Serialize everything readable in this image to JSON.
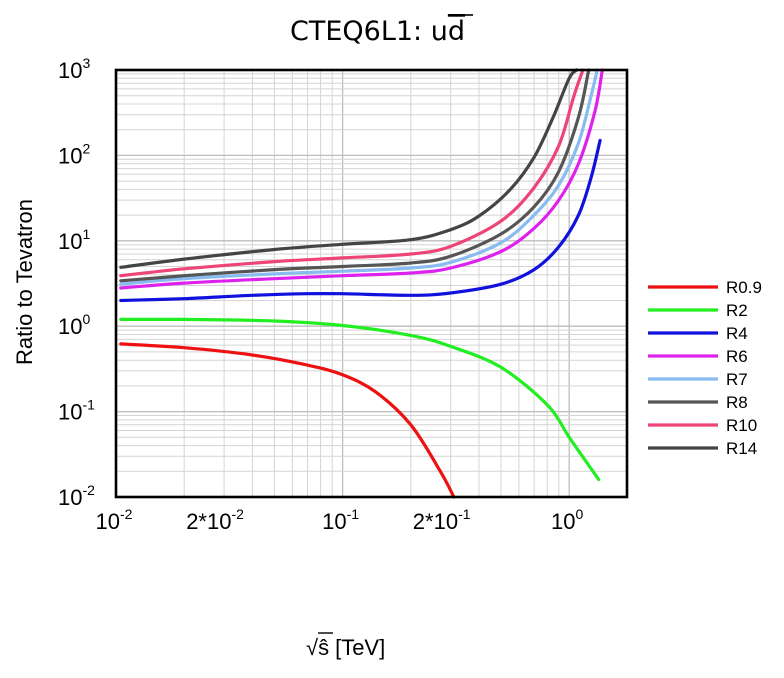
{
  "chart_data": {
    "type": "line",
    "title": "CTEQ6L1: ud̄",
    "title_main": "CTEQ6L1: u",
    "title_bar": "d",
    "xlabel": "[TeV]",
    "xlabel_root": "√",
    "xlabel_var": "ŝ",
    "ylabel": "Ratio to Tevatron",
    "xscale": "log",
    "yscale": "log",
    "xlim": [
      0.01,
      1.8
    ],
    "ylim": [
      0.01,
      1000
    ],
    "grid": true,
    "legend": "right",
    "x_ticks": [
      {
        "value": 0.01,
        "base": "10",
        "exp": "-2"
      },
      {
        "value": 0.02,
        "base": "2*10",
        "exp": "-2"
      },
      {
        "value": 0.1,
        "base": "10",
        "exp": "-1"
      },
      {
        "value": 0.2,
        "base": "2*10",
        "exp": "-1"
      },
      {
        "value": 1,
        "base": "10",
        "exp": "0"
      }
    ],
    "y_ticks": [
      {
        "value": 0.01,
        "base": "10",
        "exp": "-2"
      },
      {
        "value": 0.1,
        "base": "10",
        "exp": "-1"
      },
      {
        "value": 1,
        "base": "10",
        "exp": "0"
      },
      {
        "value": 10,
        "base": "10",
        "exp": "1"
      },
      {
        "value": 100,
        "base": "10",
        "exp": "2"
      },
      {
        "value": 1000,
        "base": "10",
        "exp": "3"
      }
    ],
    "series": [
      {
        "name": "R0.9",
        "color": "#ee1111",
        "x": [
          0.0105,
          0.02,
          0.04,
          0.07,
          0.1,
          0.14,
          0.2,
          0.27,
          0.31
        ],
        "y": [
          0.62,
          0.56,
          0.46,
          0.35,
          0.27,
          0.17,
          0.07,
          0.02,
          0.01
        ]
      },
      {
        "name": "R2",
        "color": "#22ee22",
        "x": [
          0.0105,
          0.02,
          0.05,
          0.1,
          0.2,
          0.3,
          0.5,
          0.8,
          1.0,
          1.2,
          1.35
        ],
        "y": [
          1.2,
          1.2,
          1.15,
          1.02,
          0.78,
          0.58,
          0.33,
          0.12,
          0.05,
          0.025,
          0.016
        ]
      },
      {
        "name": "R4",
        "color": "#1111dd",
        "x": [
          0.0105,
          0.02,
          0.04,
          0.07,
          0.1,
          0.2,
          0.3,
          0.5,
          0.7,
          0.9,
          1.1,
          1.25,
          1.37
        ],
        "y": [
          2.0,
          2.1,
          2.3,
          2.4,
          2.4,
          2.3,
          2.45,
          3.1,
          4.6,
          8.5,
          20,
          55,
          150
        ]
      },
      {
        "name": "R6",
        "color": "#dd22ee",
        "x": [
          0.0105,
          0.02,
          0.05,
          0.1,
          0.2,
          0.3,
          0.5,
          0.7,
          0.9,
          1.1,
          1.3,
          1.4
        ],
        "y": [
          2.8,
          3.2,
          3.6,
          3.9,
          4.2,
          4.8,
          7.5,
          14,
          30,
          80,
          330,
          1000
        ]
      },
      {
        "name": "R7",
        "color": "#88bbf0",
        "x": [
          0.0105,
          0.02,
          0.05,
          0.1,
          0.2,
          0.3,
          0.5,
          0.7,
          0.9,
          1.1,
          1.25,
          1.33
        ],
        "y": [
          3.1,
          3.6,
          4.1,
          4.4,
          4.8,
          5.6,
          9.5,
          20,
          45,
          140,
          500,
          1000
        ]
      },
      {
        "name": "R8",
        "color": "#555555",
        "x": [
          0.0105,
          0.02,
          0.05,
          0.1,
          0.2,
          0.3,
          0.5,
          0.7,
          0.9,
          1.1,
          1.22
        ],
        "y": [
          3.4,
          3.9,
          4.6,
          5.0,
          5.5,
          6.6,
          12,
          25,
          65,
          280,
          1000
        ]
      },
      {
        "name": "R10",
        "color": "#ee4477",
        "x": [
          0.0105,
          0.02,
          0.05,
          0.1,
          0.2,
          0.3,
          0.5,
          0.7,
          0.9,
          1.05,
          1.15
        ],
        "y": [
          3.9,
          4.7,
          5.7,
          6.3,
          7.0,
          8.6,
          17,
          42,
          130,
          500,
          1000
        ]
      },
      {
        "name": "R14",
        "color": "#444444",
        "x": [
          0.0105,
          0.02,
          0.05,
          0.1,
          0.2,
          0.3,
          0.4,
          0.55,
          0.7,
          0.85,
          1.0,
          1.08
        ],
        "y": [
          4.9,
          6.1,
          7.9,
          9.1,
          10.3,
          13.5,
          19.5,
          40,
          95,
          280,
          800,
          1000
        ]
      }
    ]
  }
}
